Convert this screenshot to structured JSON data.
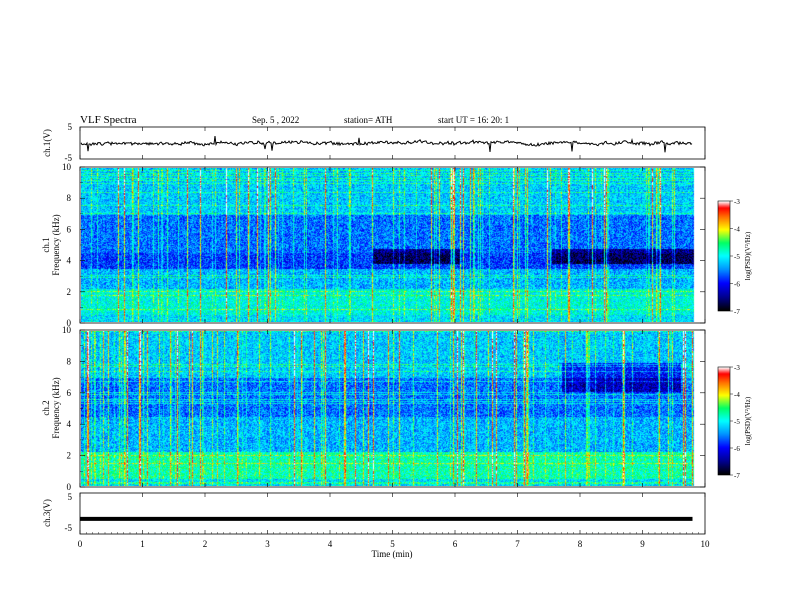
{
  "header": {
    "title": "VLF  Spectra",
    "date": "Sep. 5  , 2022",
    "station": "station= ATH",
    "start": "start  UT  =   16: 20: 1"
  },
  "colors": {
    "palette": [
      "#000000",
      "#0000a0",
      "#0000ff",
      "#00a0ff",
      "#00ffff",
      "#00ff80",
      "#ffff00",
      "#ff8000",
      "#ff0000",
      "#ffffff"
    ]
  },
  "chart_data": [
    {
      "type": "line",
      "panel": "ch1-waveform",
      "ylabel": "ch.1(V)",
      "ylim": [
        -5,
        5
      ],
      "yticks": [
        "5",
        "-5"
      ],
      "xlim": [
        0,
        10
      ],
      "description_values": {
        "mean": 0,
        "amplitude": 1.5
      }
    },
    {
      "type": "heatmap",
      "panel": "ch1-spectrogram",
      "ylabel_line1": "ch.1",
      "ylabel_line2": "Frequency  (kHz)",
      "ylim": [
        0,
        10
      ],
      "yticks": [
        "0",
        "2",
        "4",
        "6",
        "8",
        "10"
      ],
      "xlim": [
        0,
        9.8
      ],
      "colorbar": {
        "label": "log(PSD)(V²/Hz)",
        "range": [
          -7,
          -3
        ],
        "ticks": [
          "-3",
          "-4",
          "-5",
          "-6",
          "-7"
        ]
      }
    },
    {
      "type": "heatmap",
      "panel": "ch2-spectrogram",
      "ylabel_line1": "ch.2",
      "ylabel_line2": "Frequency  (kHz)",
      "ylim": [
        0,
        10
      ],
      "yticks": [
        "0",
        "2",
        "4",
        "6",
        "8",
        "10"
      ],
      "xlim": [
        0,
        9.8
      ],
      "colorbar": {
        "label": "log(PSD)(V²/Hz)",
        "range": [
          -7,
          -3
        ],
        "ticks": [
          "-3",
          "-4",
          "-5",
          "-6",
          "-7"
        ]
      }
    },
    {
      "type": "line",
      "panel": "ch3-waveform",
      "ylabel": "ch.3(V)",
      "ylim": [
        -5,
        5
      ],
      "yticks": [
        "5",
        "-5"
      ],
      "xlim": [
        0,
        10
      ],
      "constant_value": -1.3
    }
  ],
  "xaxis": {
    "label": "Time  (min)",
    "ticks": [
      "0",
      "1",
      "2",
      "3",
      "4",
      "5",
      "6",
      "7",
      "8",
      "9",
      "10"
    ]
  }
}
